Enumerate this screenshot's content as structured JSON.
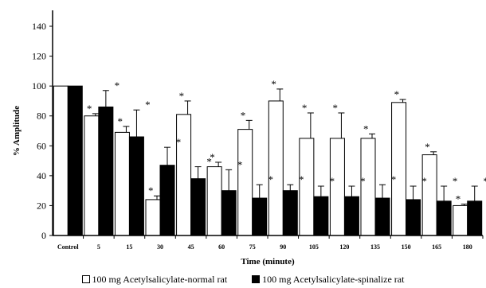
{
  "chart_data": {
    "type": "bar",
    "title": "",
    "xlabel": "Time (minute)",
    "ylabel": "% Amplitude",
    "ylim": [
      0,
      140
    ],
    "yticks": [
      0,
      20,
      40,
      60,
      80,
      100,
      120,
      140
    ],
    "categories": [
      "Control",
      "5",
      "15",
      "30",
      "45",
      "60",
      "75",
      "90",
      "105",
      "120",
      "135",
      "150",
      "165",
      "180"
    ],
    "significance_marker": "*",
    "series": [
      {
        "name": "100 mg Acetylsalicylate-normal rat",
        "color": "#ffffff",
        "values": [
          100,
          80,
          69,
          24,
          81,
          46,
          71,
          90,
          65,
          65,
          65,
          89,
          54,
          20
        ],
        "error": [
          0,
          1.5,
          4,
          2.5,
          9,
          3,
          6,
          8,
          17,
          17,
          3,
          2,
          2,
          1
        ],
        "marked": [
          false,
          true,
          true,
          true,
          true,
          true,
          true,
          true,
          true,
          true,
          true,
          true,
          true,
          true
        ]
      },
      {
        "name": "100 mg Acetylsalicylate-spinalize rat",
        "color": "#000000",
        "values": [
          100,
          86,
          66,
          47,
          38,
          30,
          25,
          30,
          26,
          26,
          25,
          24,
          23,
          23
        ],
        "error": [
          0,
          11,
          18,
          12,
          8,
          14,
          9,
          4,
          7,
          7,
          9,
          9,
          10,
          10
        ],
        "marked": [
          false,
          true,
          true,
          true,
          true,
          true,
          true,
          true,
          true,
          true,
          true,
          true,
          true,
          true
        ]
      }
    ],
    "legend_position": "bottom"
  }
}
